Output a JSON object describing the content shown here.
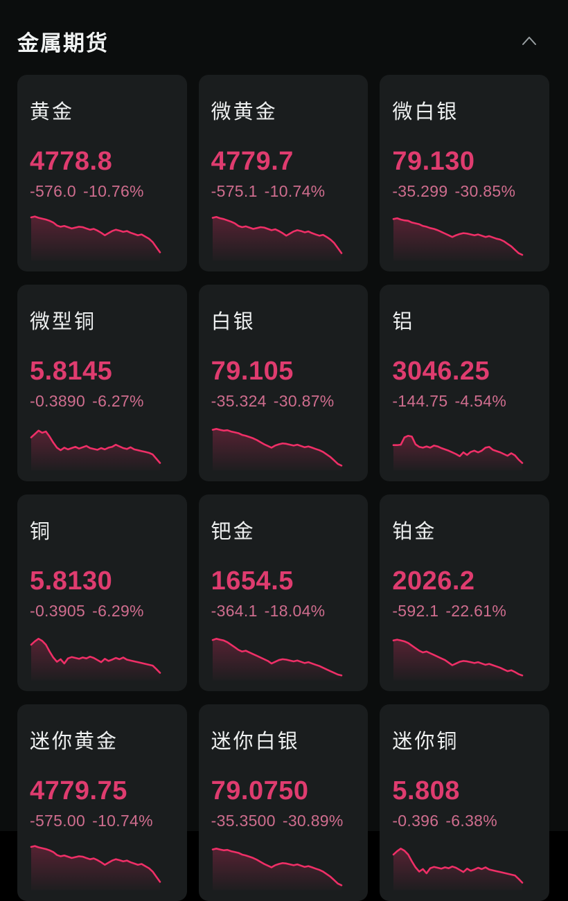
{
  "header": {
    "title": "金属期货",
    "collapse_icon": "chevron-up"
  },
  "colors": {
    "page_bg": "#0b0d0d",
    "card_bg": "#1a1d1e",
    "title_text": "#f1f3f3",
    "name_text": "#eef0f0",
    "price_text": "#df3c6f",
    "change_text": "#cf6d8e",
    "spark_line": "#ef2f67",
    "chevron": "#9aa0a3"
  },
  "cards": [
    {
      "name": "黄金",
      "price": "4778.8",
      "change": "-576.0",
      "percent": "-10.76%",
      "spark": [
        92,
        94,
        91,
        89,
        87,
        84,
        80,
        73,
        70,
        72,
        69,
        66,
        68,
        70,
        69,
        66,
        63,
        65,
        61,
        56,
        50,
        55,
        60,
        63,
        61,
        58,
        60,
        56,
        53,
        50,
        52,
        47,
        42,
        34,
        22,
        10
      ]
    },
    {
      "name": "微黄金",
      "price": "4779.7",
      "change": "-575.1",
      "percent": "-10.74%",
      "spark": [
        91,
        93,
        90,
        88,
        85,
        82,
        78,
        72,
        69,
        71,
        68,
        65,
        67,
        69,
        68,
        65,
        62,
        64,
        60,
        55,
        49,
        54,
        59,
        62,
        60,
        57,
        59,
        55,
        52,
        49,
        51,
        46,
        40,
        32,
        20,
        8
      ]
    },
    {
      "name": "微白银",
      "price": "79.130",
      "change": "-35.299",
      "percent": "-30.85%",
      "spark": [
        88,
        90,
        87,
        85,
        84,
        80,
        78,
        76,
        72,
        70,
        67,
        65,
        62,
        58,
        54,
        50,
        46,
        50,
        53,
        55,
        54,
        52,
        50,
        52,
        49,
        46,
        48,
        45,
        42,
        40,
        36,
        30,
        24,
        16,
        8,
        4
      ]
    },
    {
      "name": "微型铜",
      "price": "5.8145",
      "change": "-0.3890",
      "percent": "-6.27%",
      "spark": [
        68,
        76,
        84,
        79,
        82,
        70,
        56,
        44,
        38,
        44,
        40,
        43,
        46,
        42,
        45,
        48,
        43,
        41,
        39,
        43,
        40,
        44,
        46,
        51,
        47,
        43,
        41,
        45,
        40,
        38,
        36,
        34,
        32,
        28,
        18,
        8
      ]
    },
    {
      "name": "白银",
      "price": "79.105",
      "change": "-35.324",
      "percent": "-30.87%",
      "spark": [
        86,
        88,
        86,
        84,
        85,
        82,
        80,
        78,
        74,
        72,
        69,
        66,
        62,
        57,
        52,
        48,
        44,
        49,
        52,
        54,
        53,
        51,
        49,
        51,
        48,
        45,
        47,
        44,
        41,
        38,
        34,
        28,
        22,
        14,
        6,
        2
      ]
    },
    {
      "name": "铝",
      "price": "3046.25",
      "change": "-144.75",
      "percent": "-4.54%",
      "spark": [
        50,
        50,
        51,
        68,
        72,
        70,
        52,
        46,
        44,
        47,
        44,
        49,
        47,
        43,
        40,
        37,
        33,
        29,
        24,
        33,
        27,
        34,
        37,
        33,
        37,
        44,
        46,
        39,
        36,
        33,
        29,
        25,
        31,
        26,
        16,
        8
      ]
    },
    {
      "name": "铜",
      "price": "5.8130",
      "change": "-0.3905",
      "percent": "-6.29%",
      "spark": [
        74,
        82,
        88,
        83,
        74,
        58,
        44,
        34,
        40,
        30,
        42,
        45,
        43,
        41,
        44,
        42,
        46,
        43,
        38,
        33,
        41,
        36,
        39,
        43,
        40,
        44,
        39,
        37,
        35,
        33,
        31,
        29,
        27,
        25,
        17,
        8
      ]
    },
    {
      "name": "钯金",
      "price": "1654.5",
      "change": "-364.1",
      "percent": "-18.04%",
      "spark": [
        85,
        88,
        86,
        84,
        80,
        74,
        68,
        62,
        58,
        60,
        56,
        52,
        48,
        44,
        40,
        36,
        30,
        34,
        38,
        40,
        39,
        37,
        35,
        37,
        34,
        31,
        33,
        30,
        27,
        24,
        20,
        16,
        12,
        8,
        4,
        2
      ]
    },
    {
      "name": "铂金",
      "price": "2026.2",
      "change": "-592.1",
      "percent": "-22.61%",
      "spark": [
        84,
        86,
        84,
        82,
        78,
        72,
        66,
        60,
        56,
        58,
        54,
        50,
        46,
        42,
        38,
        32,
        26,
        30,
        34,
        36,
        35,
        33,
        31,
        33,
        30,
        27,
        29,
        26,
        23,
        20,
        16,
        12,
        14,
        10,
        5,
        2
      ]
    },
    {
      "name": "迷你黄金",
      "price": "4779.75",
      "change": "-575.00",
      "percent": "-10.74%",
      "spark": [
        92,
        94,
        91,
        89,
        87,
        84,
        80,
        73,
        70,
        72,
        69,
        66,
        68,
        70,
        69,
        66,
        63,
        65,
        61,
        56,
        50,
        55,
        60,
        63,
        61,
        58,
        60,
        56,
        53,
        50,
        52,
        47,
        42,
        34,
        22,
        10
      ]
    },
    {
      "name": "迷你白银",
      "price": "79.0750",
      "change": "-35.3500",
      "percent": "-30.89%",
      "spark": [
        86,
        88,
        86,
        84,
        85,
        82,
        80,
        78,
        74,
        72,
        69,
        66,
        62,
        57,
        52,
        48,
        44,
        49,
        52,
        54,
        53,
        51,
        49,
        51,
        48,
        45,
        47,
        44,
        41,
        38,
        34,
        28,
        22,
        14,
        6,
        2
      ]
    },
    {
      "name": "迷你铜",
      "price": "5.808",
      "change": "-0.396",
      "percent": "-6.38%",
      "spark": [
        74,
        82,
        88,
        83,
        74,
        58,
        44,
        34,
        40,
        30,
        42,
        45,
        43,
        41,
        44,
        42,
        46,
        43,
        38,
        33,
        41,
        36,
        39,
        43,
        40,
        44,
        39,
        37,
        35,
        33,
        31,
        29,
        27,
        25,
        17,
        8
      ]
    }
  ]
}
